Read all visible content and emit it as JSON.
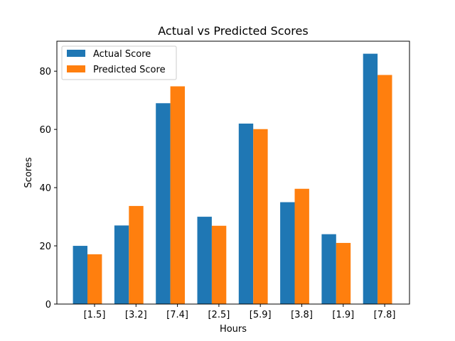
{
  "chart_data": {
    "type": "bar",
    "title": "Actual vs Predicted Scores",
    "xlabel": "Hours",
    "ylabel": "Scores",
    "categories": [
      "[1.5]",
      "[3.2]",
      "[7.4]",
      "[2.5]",
      "[5.9]",
      "[3.8]",
      "[1.9]",
      "[7.8]"
    ],
    "series": [
      {
        "name": "Actual Score",
        "color": "#1f77b4",
        "values": [
          20,
          27,
          69,
          30,
          62,
          35,
          24,
          86
        ]
      },
      {
        "name": "Predicted Score",
        "color": "#ff7f0e",
        "values": [
          17.1,
          33.7,
          74.8,
          26.9,
          60.1,
          39.6,
          21.0,
          78.7
        ]
      }
    ],
    "yticks": [
      0,
      20,
      40,
      60,
      80
    ],
    "ylim": [
      0,
      90.3
    ],
    "legend_position": "top-left",
    "grid": false
  }
}
